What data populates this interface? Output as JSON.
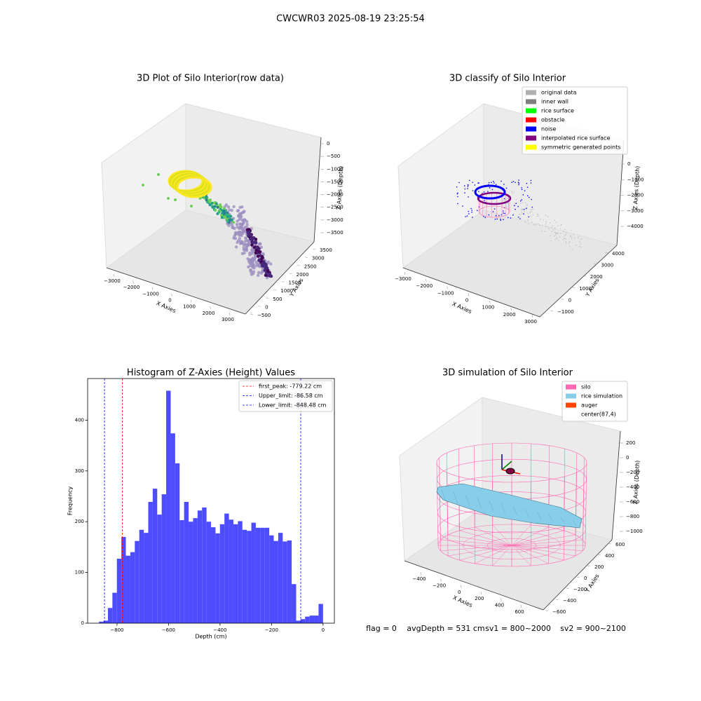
{
  "title": "CWCWR03 2025-08-19 23:25:54",
  "chart_data": [
    {
      "type": "scatter3d",
      "title": "3D Plot of Silo Interior(row data)",
      "xlabel": "X Axies",
      "ylabel": "Y Axies",
      "zlabel": "Z Axies (Depth)",
      "xticks": [
        {
          "value": -3000,
          "label": "−3000"
        },
        {
          "value": -2000,
          "label": "−2000"
        },
        {
          "value": -1000,
          "label": "−1000"
        },
        0,
        1000,
        2000,
        3000
      ],
      "yticks": [
        {
          "value": -500,
          "label": "−500"
        },
        0,
        500,
        1000,
        1500,
        2000,
        2500,
        3000,
        3500
      ],
      "zticks": [
        {
          "value": -3500,
          "label": "−3500"
        },
        {
          "value": -3000,
          "label": "−3000"
        },
        {
          "value": -2500,
          "label": "−2500"
        },
        {
          "value": -2000,
          "label": "−2000"
        },
        {
          "value": -1500,
          "label": "−1500"
        },
        {
          "value": -1000,
          "label": "−1000"
        },
        {
          "value": -500,
          "label": "−500"
        },
        0
      ]
    },
    {
      "type": "classify3d",
      "title": "3D classify of Silo Interior",
      "xlabel": "X Axies",
      "ylabel": "Y Axies",
      "zlabel": "Z Axies (Depth)",
      "xticks": [
        {
          "value": -3000,
          "label": "−3000"
        },
        {
          "value": -2000,
          "label": "−2000"
        },
        {
          "value": -1000,
          "label": "−1000"
        },
        0,
        1000,
        2000,
        3000
      ],
      "yticks": [
        {
          "value": -1000,
          "label": "−1000"
        },
        0,
        1000,
        2000,
        3000,
        4000
      ],
      "zticks": [
        {
          "value": -4000,
          "label": "−4000"
        },
        {
          "value": -3000,
          "label": "−3000"
        },
        {
          "value": -2000,
          "label": "−2000"
        },
        {
          "value": -1000,
          "label": "−1000"
        },
        0
      ],
      "legend": [
        {
          "name": "original data",
          "color": "#b0b0b0"
        },
        {
          "name": "inner wall",
          "color": "#808080"
        },
        {
          "name": "rice surface",
          "color": "#00ff00"
        },
        {
          "name": "obstacle",
          "color": "#ff0000"
        },
        {
          "name": "noise",
          "color": "#0000ff"
        },
        {
          "name": "interpolated rice surface",
          "color": "#800080"
        },
        {
          "name": "symmetric generated points",
          "color": "#ffff00"
        }
      ]
    },
    {
      "type": "histogram",
      "title": "Histogram of Z-Axies (Height) Values",
      "xlabel": "Depth (cm)",
      "ylabel": "Frequency",
      "color": "#4d4dff",
      "bins": [
        -870,
        -852.6,
        -835.2,
        -817.8,
        -800.4,
        -783,
        -765.6,
        -748.2,
        -730.8,
        -713.4,
        -696,
        -678.6,
        -661.2,
        -643.8,
        -626.4,
        -609,
        -591.6,
        -574.2,
        -556.8,
        -539.4,
        -522,
        -504.6,
        -487.2,
        -469.8,
        -452.4,
        -435,
        -417.6,
        -400.2,
        -382.8,
        -365.4,
        -348,
        -330.6,
        -313.2,
        -295.8,
        -278.4,
        -261,
        -243.6,
        -226.2,
        -208.8,
        -191.4,
        -174,
        -156.6,
        -139.2,
        -121.8,
        -104.4,
        -87,
        -69.6,
        -52.2,
        -34.8,
        -17.4,
        0
      ],
      "values": [
        3,
        5,
        30,
        60,
        127,
        170,
        133,
        140,
        162,
        184,
        178,
        239,
        265,
        214,
        254,
        458,
        374,
        315,
        203,
        239,
        200,
        207,
        222,
        228,
        200,
        189,
        177,
        195,
        216,
        204,
        195,
        201,
        184,
        182,
        198,
        188,
        188,
        188,
        173,
        162,
        178,
        161,
        163,
        77,
        5,
        8,
        13,
        15,
        15,
        38
      ],
      "vlines": [
        {
          "name": "first_peak: -779.22 cm",
          "value": -779.22,
          "color": "#ff0000"
        },
        {
          "name": "Upper_limit: -86.58 cm",
          "value": -86.58,
          "color": "#0000ff"
        },
        {
          "name": "Lower_limit: -848.48 cm",
          "value": -848.48,
          "color": "#0000ff"
        }
      ],
      "xlim": [
        -914,
        44
      ],
      "ylim": [
        0,
        482
      ],
      "xticks": [
        {
          "value": -800,
          "label": "−800"
        },
        {
          "value": -600,
          "label": "−600"
        },
        {
          "value": -400,
          "label": "−400"
        },
        {
          "value": -200,
          "label": "−200"
        },
        0
      ],
      "yticks": [
        0,
        100,
        200,
        300,
        400
      ]
    },
    {
      "type": "simulation3d",
      "title": "3D simulation of Silo Interior",
      "xlabel": "X Axies",
      "ylabel": "Y Axies",
      "zlabel": "Z Axies (Depth)",
      "xticks": [
        {
          "value": -400,
          "label": "−400"
        },
        {
          "value": -200,
          "label": "−200"
        },
        0,
        200,
        400,
        600
      ],
      "yticks": [
        {
          "value": -600,
          "label": "−600"
        },
        {
          "value": -400,
          "label": "−400"
        },
        {
          "value": -200,
          "label": "−200"
        },
        0,
        200,
        400,
        600
      ],
      "zticks": [
        {
          "value": -1000,
          "label": "−1000"
        },
        {
          "value": -800,
          "label": "−800"
        },
        {
          "value": -600,
          "label": "−600"
        },
        {
          "value": -400,
          "label": "−400"
        },
        {
          "value": -200,
          "label": "−200"
        },
        0,
        200
      ],
      "legend": [
        {
          "name": "silo",
          "color": "#ff69b4"
        },
        {
          "name": "rice simulation",
          "color": "#87ceeb"
        },
        {
          "name": "auger",
          "color": "#ff4500"
        },
        {
          "name": "center(87,4)",
          "color": "#ffffff"
        }
      ]
    }
  ],
  "footer": [
    "flag = 0",
    "avgDepth = 531 cm",
    "sv1 = 800~2000",
    "sv2 = 900~2100"
  ]
}
